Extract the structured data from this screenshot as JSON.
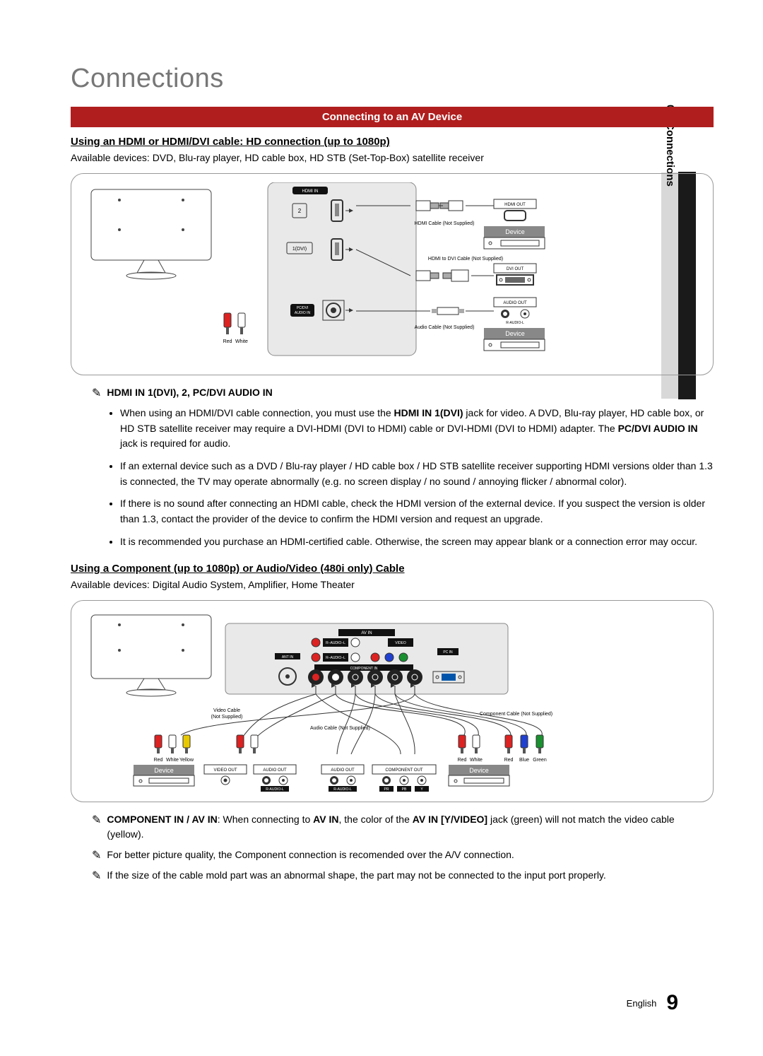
{
  "side_tab": {
    "prefix": "02",
    "label": "Connections"
  },
  "chapter_title": "Connections",
  "section_bar": "Connecting to an AV Device",
  "hdmi": {
    "sub_heading": "Using an HDMI or HDMI/DVI cable: HD connection (up to 1080p)",
    "avail": "Available devices: DVD, Blu-ray player, HD cable box, HD STB (Set-Top-Box) satellite receiver",
    "diagram": {
      "hdmi_in": "HDMI IN",
      "port2": "2",
      "port1": "1(DVI)",
      "pc_dvi": "PC/DVI\nAUDIO IN",
      "hdmi_out": "HDMI OUT",
      "dvi_out": "DVI OUT",
      "audio_out": "AUDIO OUT",
      "hdmi_cable": "HDMI Cable (Not Supplied)",
      "hdmi_dvi_cable": "HDMI to DVI Cable (Not Supplied)",
      "audio_cable": "Audio Cable (Not Supplied)",
      "device": "Device",
      "red": "Red",
      "white": "White",
      "r_audio_l": "R-AUDIO-L"
    },
    "note_heading": "HDMI IN 1(DVI), 2, PC/DVI AUDIO IN",
    "bullets": [
      "When using an HDMI/DVI cable connection, you must use the <b>HDMI IN 1(DVI)</b> jack for video. A DVD, Blu-ray player, HD cable box, or HD STB satellite receiver may require a DVI-HDMI (DVI to HDMI) cable or DVI-HDMI (DVI to HDMI) adapter. The <b>PC/DVI AUDIO IN</b> jack is required for audio.",
      "If an external device such as a DVD / Blu-ray player / HD cable box / HD STB satellite receiver supporting HDMI versions older than 1.3 is connected, the TV may operate abnormally (e.g. no screen display / no sound / annoying flicker / abnormal color).",
      " If there is no sound after connecting an HDMI cable, check the HDMI version of the external device. If you suspect the version is older than 1.3, contact the provider of the device to confirm the HDMI version and request an upgrade.",
      "It is recommended you purchase an HDMI-certified cable. Otherwise, the screen may appear blank or a connection error may occur."
    ]
  },
  "component": {
    "sub_heading": "Using a Component (up to 1080p) or Audio/Video (480i only) Cable",
    "avail": "Available devices: Digital Audio System, Amplifier, Home Theater",
    "diagram": {
      "av_in": "AV IN",
      "component_in": "COMPONENT IN",
      "pc_in": "PC IN",
      "ant_in": "ANT IN",
      "video_cable": "Video Cable\n(Not Supplied)",
      "audio_cable": "Audio Cable (Not Supplied)",
      "component_cable": "Component Cable (Not Supplied)",
      "device": "Device",
      "video_out": "VIDEO OUT",
      "audio_out": "AUDIO OUT",
      "component_out": "COMPONENT OUT",
      "red": "Red",
      "white": "White",
      "yellow": "Yellow",
      "blue": "Blue",
      "green": "Green",
      "r_audio_l": "R-AUDIO-L",
      "pb": "PB",
      "pr": "PR",
      "y": "Y",
      "audio_r": "R",
      "audio_l": "L",
      "audio": "AUDIO",
      "video": "VIDEO",
      "y_video": "Y/VIDEO"
    },
    "notes": [
      "<b>COMPONENT IN / AV IN</b>: When connecting to <b>AV IN</b>, the color of the <b>AV IN [Y/VIDEO]</b> jack (green) will not match the video cable (yellow).",
      "For better picture quality, the Component connection is recomended over the A/V connection.",
      "If the size of the cable mold part was an abnormal shape, the part may not be connected to the input port properly."
    ]
  },
  "footer": {
    "lang": "English",
    "page": "9"
  },
  "colors": {
    "accent": "#b01e1e",
    "grey_title": "#777777",
    "device_fill": "#888888",
    "black_label": "#111111",
    "line": "#333333",
    "red": "#d22",
    "white": "#fff",
    "yellow": "#e8c800",
    "blue": "#2040d0",
    "green": "#1a9030"
  }
}
